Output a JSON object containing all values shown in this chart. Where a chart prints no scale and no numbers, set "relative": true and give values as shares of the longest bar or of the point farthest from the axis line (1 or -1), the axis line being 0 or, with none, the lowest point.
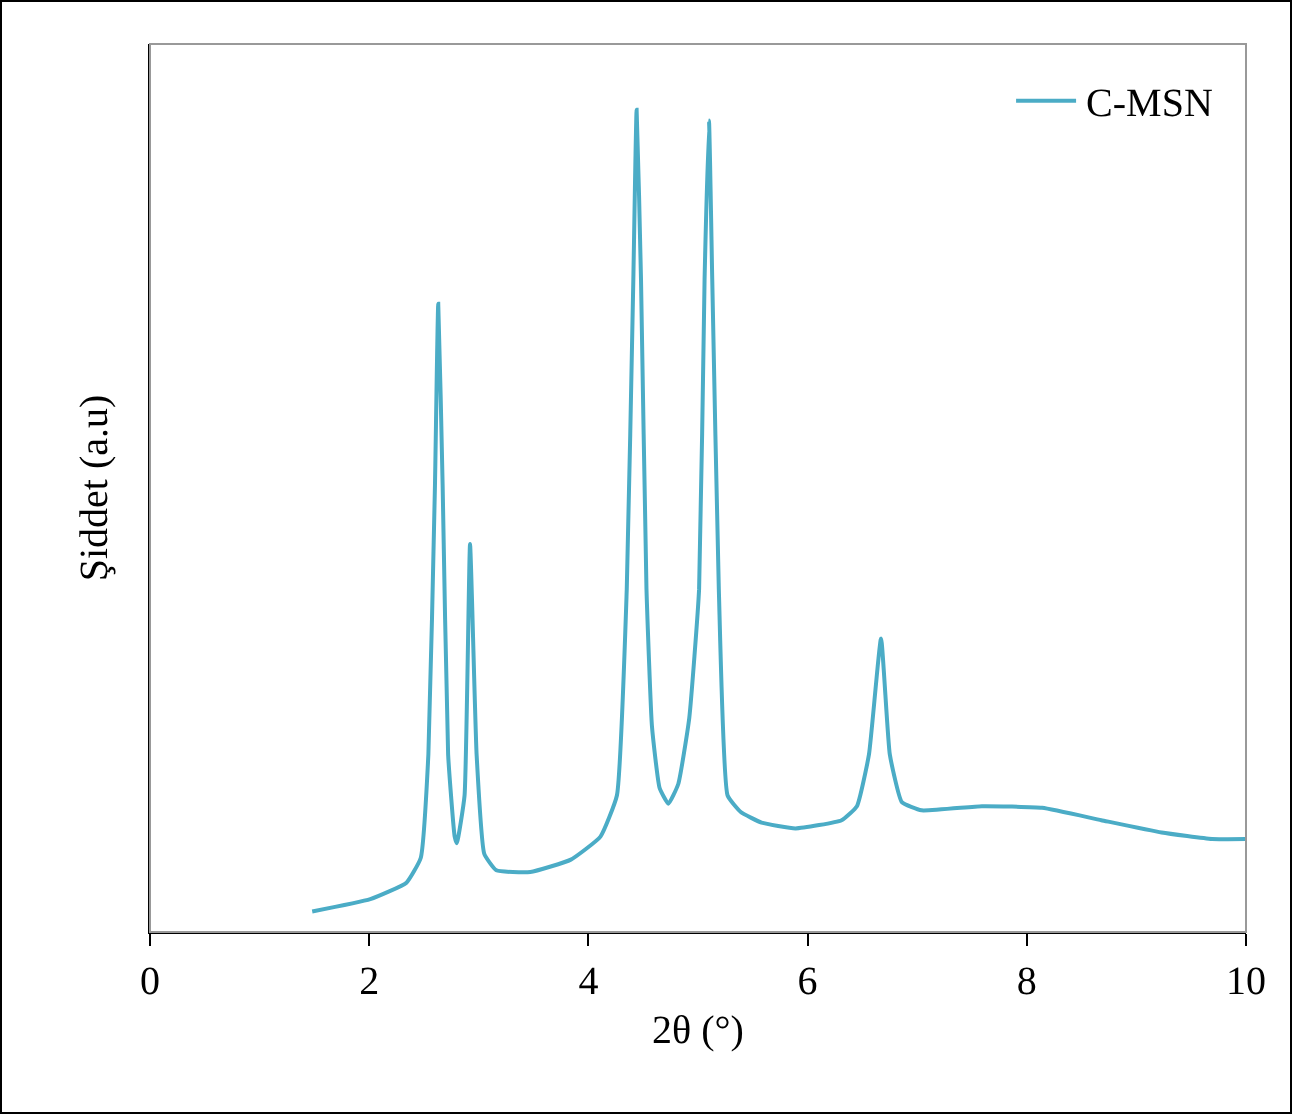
{
  "chart_data": {
    "type": "line",
    "relative": true,
    "xlabel": "2θ (°)",
    "ylabel": "Şiddet (a.u)",
    "xlim": [
      0,
      10
    ],
    "xticks": [
      0,
      2,
      4,
      6,
      8,
      10
    ],
    "legend": "top right",
    "grid": false,
    "marker": "none",
    "line_style": "solid",
    "series": [
      {
        "name": "C-MSN",
        "color": "#4bacc6",
        "x": [
          1.48,
          2.01,
          2.34,
          2.47,
          2.54,
          2.6,
          2.63,
          2.67,
          2.72,
          2.78,
          2.8,
          2.87,
          2.92,
          2.98,
          3.05,
          3.16,
          3.47,
          3.84,
          4.11,
          4.26,
          4.35,
          4.41,
          4.44,
          4.48,
          4.53,
          4.58,
          4.65,
          4.73,
          4.82,
          4.92,
          5.01,
          5.06,
          5.1,
          5.13,
          5.19,
          5.27,
          5.39,
          5.58,
          5.89,
          6.31,
          6.45,
          6.56,
          6.67,
          6.75,
          6.86,
          7.04,
          7.59,
          8.14,
          8.68,
          9.23,
          9.69,
          10
        ],
        "values": [
          0.025,
          0.04,
          0.06,
          0.09,
          0.216,
          0.543,
          0.764,
          0.543,
          0.216,
          0.116,
          0.108,
          0.166,
          0.472,
          0.216,
          0.095,
          0.075,
          0.073,
          0.088,
          0.116,
          0.166,
          0.417,
          0.794,
          1.0,
          0.794,
          0.417,
          0.25,
          0.175,
          0.156,
          0.18,
          0.26,
          0.417,
          0.794,
          0.987,
          0.794,
          0.417,
          0.166,
          0.146,
          0.133,
          0.126,
          0.136,
          0.153,
          0.216,
          0.357,
          0.216,
          0.158,
          0.148,
          0.153,
          0.151,
          0.136,
          0.121,
          0.113,
          0.113
        ]
      }
    ]
  }
}
